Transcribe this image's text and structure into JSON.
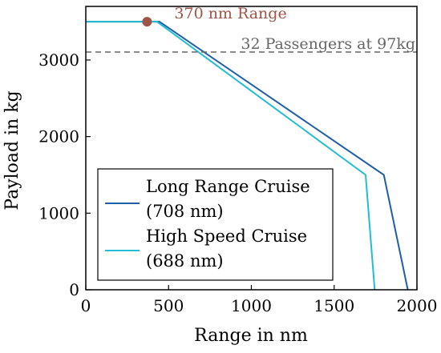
{
  "chart_data": {
    "type": "line",
    "xlabel": "Range in nm",
    "ylabel": "Payload in kg",
    "xlim": [
      0,
      2000
    ],
    "ylim": [
      0,
      3700
    ],
    "xticks": [
      0,
      500,
      1000,
      1500,
      2000
    ],
    "yticks": [
      0,
      1000,
      2000,
      3000
    ],
    "xtick_labels": [
      "0",
      "500",
      "1000",
      "1500",
      "2000"
    ],
    "ytick_labels": [
      "0",
      "1000",
      "2000",
      "3000"
    ],
    "grid": false,
    "legend_position": "lower-left",
    "series": [
      {
        "name": "Long Range Cruise (708 nm)",
        "legend_lines": [
          "Long Range Cruise",
          "(708 nm)"
        ],
        "color": "#1f5fa8",
        "points": [
          [
            0,
            3500
          ],
          [
            445,
            3500
          ],
          [
            1800,
            1500
          ],
          [
            1945,
            0
          ]
        ]
      },
      {
        "name": "High Speed Cruise (688 nm)",
        "legend_lines": [
          "High Speed Cruise",
          "(688 nm)"
        ],
        "color": "#22bcd4",
        "points": [
          [
            0,
            3500
          ],
          [
            430,
            3500
          ],
          [
            1690,
            1500
          ],
          [
            1745,
            0
          ]
        ]
      }
    ],
    "reference_lines": [
      {
        "label": "32 Passengers at 97kg",
        "y": 3104,
        "color": "#666666",
        "style": "dashed"
      }
    ],
    "markers": [
      {
        "label": "370 nm Range",
        "x": 370,
        "y": 3500,
        "color": "#9e5548"
      }
    ]
  }
}
